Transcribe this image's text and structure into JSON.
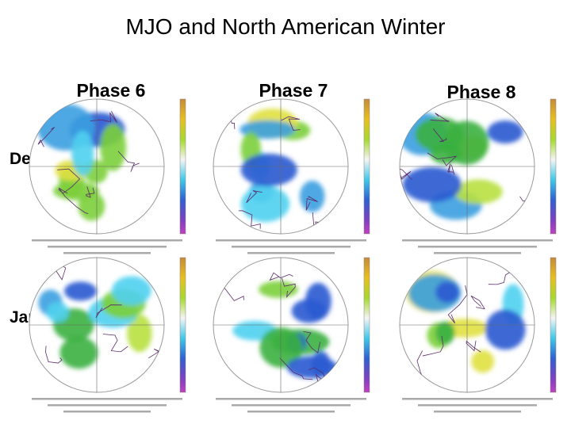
{
  "title": "MJO and North American Winter",
  "columns": [
    "Phase 6",
    "Phase 7",
    "Phase 8"
  ],
  "rows": [
    "Dec",
    "Jan"
  ]
}
